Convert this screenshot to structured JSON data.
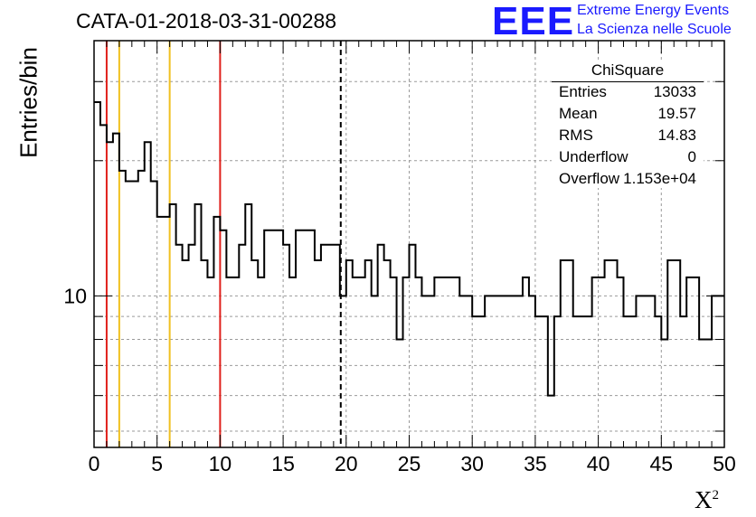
{
  "title": "CATA-01-2018-03-31-00288",
  "logo": {
    "mark": "EEE",
    "line1": "Extreme Energy Events",
    "line2": "La Scienza nelle Scuole",
    "color": "#1a1aff"
  },
  "stats": {
    "name": "ChiSquare",
    "rows": [
      {
        "key": "Entries",
        "value": "13033"
      },
      {
        "key": "Mean",
        "value": "19.57"
      },
      {
        "key": "RMS",
        "value": "14.83"
      },
      {
        "key": "Underflow",
        "value": "0"
      },
      {
        "key": "Overflow",
        "value": "1.153e+04"
      }
    ]
  },
  "chart_data": {
    "type": "histogram",
    "title": "CATA-01-2018-03-31-00288",
    "xlabel": "X",
    "xlabel_superscript": "2",
    "ylabel": "Entries/bin",
    "xlim": [
      0,
      50
    ],
    "ylim": [
      4.6,
      37
    ],
    "yscale": "log",
    "bin_width": 0.5,
    "x_ticks": [
      0,
      5,
      10,
      15,
      20,
      25,
      30,
      35,
      40,
      45,
      50
    ],
    "y_tick_labels": [
      {
        "value": 10,
        "label": "10"
      }
    ],
    "grid": true,
    "line_color": "#000000",
    "bin_values": [
      27,
      24,
      22,
      23,
      19,
      18,
      18,
      19,
      22,
      18,
      15,
      15,
      16,
      13,
      12,
      13,
      16,
      12,
      11,
      15,
      14,
      11,
      11,
      13,
      16,
      12,
      11,
      14,
      14,
      14,
      13,
      11,
      14,
      14,
      14,
      12,
      13,
      13,
      13,
      10,
      12,
      11,
      11,
      12,
      10,
      13,
      12,
      11,
      8,
      11,
      13,
      11,
      10,
      10,
      11,
      11,
      11,
      11,
      10,
      10,
      9,
      9,
      10,
      10,
      10,
      10,
      10,
      10,
      11,
      10,
      9,
      9,
      6,
      9,
      12,
      12,
      9,
      9,
      9,
      11,
      11,
      12,
      12,
      11,
      9,
      9,
      10,
      10,
      10,
      9,
      8,
      12,
      12,
      9,
      11,
      11,
      8,
      8,
      10,
      10
    ],
    "reference_lines": [
      {
        "x": 1,
        "color": "#e0201b",
        "style": "solid"
      },
      {
        "x": 2,
        "color": "#f0c020",
        "style": "solid"
      },
      {
        "x": 6,
        "color": "#f0c020",
        "style": "solid"
      },
      {
        "x": 10,
        "color": "#e0201b",
        "style": "solid"
      },
      {
        "x": 19.57,
        "color": "#000000",
        "style": "dashed"
      }
    ]
  }
}
